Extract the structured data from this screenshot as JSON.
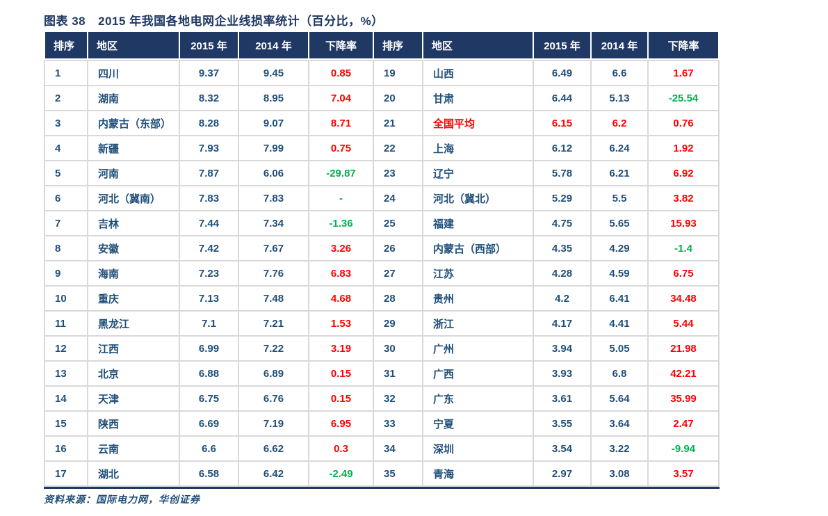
{
  "title": {
    "figure_label": "图表 38",
    "caption": "2015 年我国各地电网企业线损率统计（百分比，%）"
  },
  "table": {
    "headers": [
      "排序",
      "地区",
      "2015 年",
      "2014 年",
      "下降率"
    ],
    "left_rows": [
      {
        "rank": "1",
        "region": "四川",
        "y2015": "9.37",
        "y2014": "9.45",
        "decline": "0.85"
      },
      {
        "rank": "2",
        "region": "湖南",
        "y2015": "8.32",
        "y2014": "8.95",
        "decline": "7.04"
      },
      {
        "rank": "3",
        "region": "内蒙古（东部）",
        "y2015": "8.28",
        "y2014": "9.07",
        "decline": "8.71"
      },
      {
        "rank": "4",
        "region": "新疆",
        "y2015": "7.93",
        "y2014": "7.99",
        "decline": "0.75"
      },
      {
        "rank": "5",
        "region": "河南",
        "y2015": "7.87",
        "y2014": "6.06",
        "decline": "-29.87"
      },
      {
        "rank": "6",
        "region": "河北（冀南）",
        "y2015": "7.83",
        "y2014": "7.83",
        "decline": "-"
      },
      {
        "rank": "7",
        "region": "吉林",
        "y2015": "7.44",
        "y2014": "7.34",
        "decline": "-1.36"
      },
      {
        "rank": "8",
        "region": "安徽",
        "y2015": "7.42",
        "y2014": "7.67",
        "decline": "3.26"
      },
      {
        "rank": "9",
        "region": "海南",
        "y2015": "7.23",
        "y2014": "7.76",
        "decline": "6.83"
      },
      {
        "rank": "10",
        "region": "重庆",
        "y2015": "7.13",
        "y2014": "7.48",
        "decline": "4.68"
      },
      {
        "rank": "11",
        "region": "黑龙江",
        "y2015": "7.1",
        "y2014": "7.21",
        "decline": "1.53"
      },
      {
        "rank": "12",
        "region": "江西",
        "y2015": "6.99",
        "y2014": "7.22",
        "decline": "3.19"
      },
      {
        "rank": "13",
        "region": "北京",
        "y2015": "6.88",
        "y2014": "6.89",
        "decline": "0.15"
      },
      {
        "rank": "14",
        "region": "天津",
        "y2015": "6.75",
        "y2014": "6.76",
        "decline": "0.15"
      },
      {
        "rank": "15",
        "region": "陕西",
        "y2015": "6.69",
        "y2014": "7.19",
        "decline": "6.95"
      },
      {
        "rank": "16",
        "region": "云南",
        "y2015": "6.6",
        "y2014": "6.62",
        "decline": "0.3"
      },
      {
        "rank": "17",
        "region": "湖北",
        "y2015": "6.58",
        "y2014": "6.42",
        "decline": "-2.49"
      }
    ],
    "right_rows": [
      {
        "rank": "19",
        "region": "山西",
        "y2015": "6.49",
        "y2014": "6.6",
        "decline": "1.67"
      },
      {
        "rank": "20",
        "region": "甘肃",
        "y2015": "6.44",
        "y2014": "5.13",
        "decline": "-25.54"
      },
      {
        "rank": "21",
        "region": "全国平均",
        "y2015": "6.15",
        "y2014": "6.2",
        "decline": "0.76",
        "highlight": true
      },
      {
        "rank": "22",
        "region": "上海",
        "y2015": "6.12",
        "y2014": "6.24",
        "decline": "1.92"
      },
      {
        "rank": "23",
        "region": "辽宁",
        "y2015": "5.78",
        "y2014": "6.21",
        "decline": "6.92"
      },
      {
        "rank": "24",
        "region": "河北（冀北）",
        "y2015": "5.29",
        "y2014": "5.5",
        "decline": "3.82"
      },
      {
        "rank": "25",
        "region": "福建",
        "y2015": "4.75",
        "y2014": "5.65",
        "decline": "15.93"
      },
      {
        "rank": "26",
        "region": "内蒙古（西部）",
        "y2015": "4.35",
        "y2014": "4.29",
        "decline": "-1.4"
      },
      {
        "rank": "27",
        "region": "江苏",
        "y2015": "4.28",
        "y2014": "4.59",
        "decline": "6.75"
      },
      {
        "rank": "28",
        "region": "贵州",
        "y2015": "4.2",
        "y2014": "6.41",
        "decline": "34.48"
      },
      {
        "rank": "29",
        "region": "浙江",
        "y2015": "4.17",
        "y2014": "4.41",
        "decline": "5.44"
      },
      {
        "rank": "30",
        "region": "广州",
        "y2015": "3.94",
        "y2014": "5.05",
        "decline": "21.98"
      },
      {
        "rank": "31",
        "region": "广西",
        "y2015": "3.93",
        "y2014": "6.8",
        "decline": "42.21"
      },
      {
        "rank": "32",
        "region": "广东",
        "y2015": "3.61",
        "y2014": "5.64",
        "decline": "35.99"
      },
      {
        "rank": "33",
        "region": "宁夏",
        "y2015": "3.55",
        "y2014": "3.64",
        "decline": "2.47"
      },
      {
        "rank": "34",
        "region": "深圳",
        "y2015": "3.54",
        "y2014": "3.22",
        "decline": "-9.94"
      },
      {
        "rank": "35",
        "region": "青海",
        "y2015": "2.97",
        "y2014": "3.08",
        "decline": "3.57"
      }
    ]
  },
  "source": "资料来源：国际电力网，华创证券",
  "colors": {
    "header_bg": "#1F3864",
    "body_text": "#1F4E79",
    "increase_red": "#FF0000",
    "decrease_green": "#00B050",
    "highlight_red": "#FF0000",
    "gridline": "#D9D9D9"
  }
}
